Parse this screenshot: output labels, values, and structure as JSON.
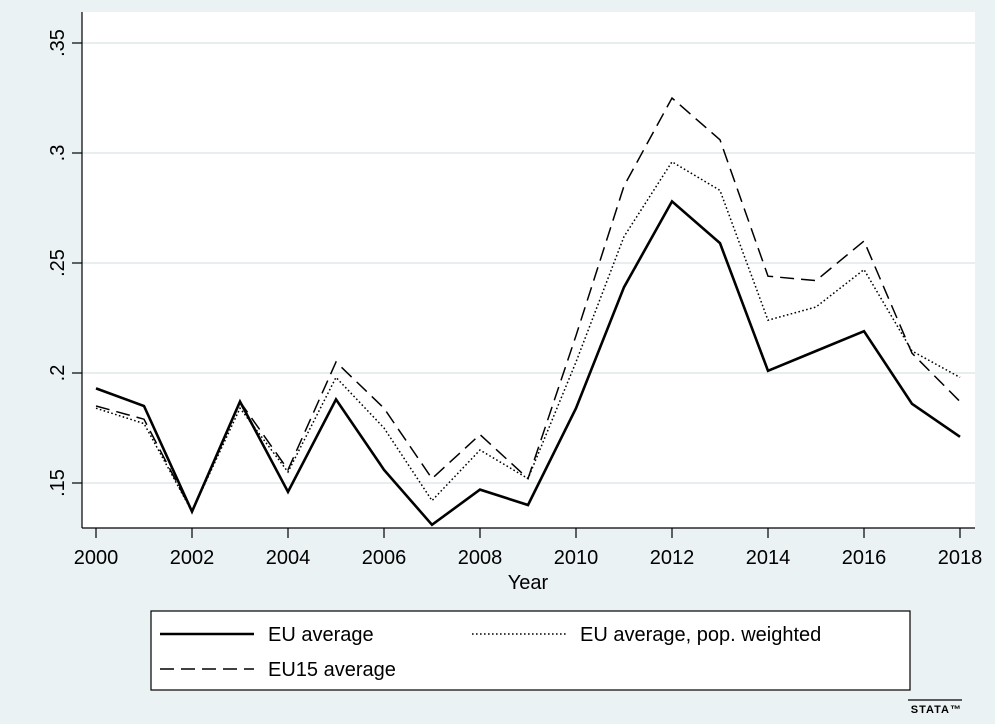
{
  "chart_data": {
    "type": "line",
    "xlabel": "Year",
    "ylabel": "",
    "xlim": [
      2000,
      2018
    ],
    "ylim": [
      0.13,
      0.35
    ],
    "x_ticks": [
      2000,
      2002,
      2004,
      2006,
      2008,
      2010,
      2012,
      2014,
      2016,
      2018
    ],
    "x_tick_labels": [
      "2000",
      "2002",
      "2004",
      "2006",
      "2008",
      "2010",
      "2012",
      "2014",
      "2016",
      "2018"
    ],
    "y_ticks": [
      0.15,
      0.2,
      0.25,
      0.3,
      0.35
    ],
    "y_tick_labels": [
      ".15",
      ".2",
      ".25",
      ".3",
      ".35"
    ],
    "grid": true,
    "legend_position": "bottom",
    "x": [
      2000,
      2001,
      2002,
      2003,
      2004,
      2005,
      2006,
      2007,
      2008,
      2009,
      2010,
      2011,
      2012,
      2013,
      2014,
      2015,
      2016,
      2017,
      2018
    ],
    "series": [
      {
        "name": "EU average",
        "style": "solid",
        "color": "#000000",
        "values": [
          0.193,
          0.185,
          0.137,
          0.187,
          0.146,
          0.188,
          0.156,
          0.131,
          0.147,
          0.14,
          0.184,
          0.239,
          0.278,
          0.259,
          0.201,
          0.21,
          0.219,
          0.186,
          0.171
        ]
      },
      {
        "name": "EU average, pop. weighted",
        "style": "dotted",
        "color": "#000000",
        "values": [
          0.184,
          0.177,
          0.137,
          0.184,
          0.155,
          0.198,
          0.175,
          0.142,
          0.165,
          0.152,
          0.205,
          0.262,
          0.296,
          0.283,
          0.224,
          0.23,
          0.247,
          0.21,
          0.198
        ]
      },
      {
        "name": "EU15 average",
        "style": "dashed",
        "color": "#000000",
        "values": [
          0.185,
          0.179,
          0.137,
          0.187,
          0.156,
          0.205,
          0.184,
          0.152,
          0.172,
          0.152,
          0.217,
          0.285,
          0.325,
          0.306,
          0.244,
          0.242,
          0.26,
          0.209,
          0.187
        ]
      }
    ]
  },
  "logo_text": "STATA™"
}
